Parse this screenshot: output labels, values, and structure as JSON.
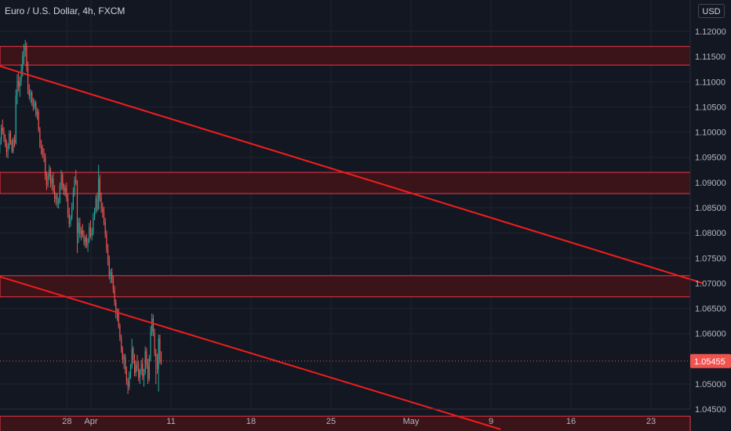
{
  "header": {
    "title": "Euro / U.S. Dollar, 4h, FXCM",
    "currency_button": "USD"
  },
  "colors": {
    "background": "#131722",
    "grid": "#1f2430",
    "up_candle": "#26a69a",
    "down_candle": "#ef5350",
    "trendline": "#f21d1d",
    "zone_fill": "#3a1419",
    "zone_border": "#f23645",
    "price_label_bg": "#ef5350",
    "axis_text": "#b2b5be"
  },
  "chart_data": {
    "type": "candlestick",
    "title": "Euro / U.S. Dollar, 4h, FXCM",
    "ylim": [
      1.0395,
      1.1245
    ],
    "y_ticks": [
      "1.12000",
      "1.11500",
      "1.11000",
      "1.10500",
      "1.10000",
      "1.09500",
      "1.09000",
      "1.08500",
      "1.08000",
      "1.07500",
      "1.07000",
      "1.06500",
      "1.06000",
      "1.05000",
      "1.04500"
    ],
    "x_ticks": [
      "28",
      "Apr",
      "11",
      "18",
      "25",
      "May",
      "9",
      "16",
      "23"
    ],
    "x_tick_positions": [
      -3,
      0,
      10,
      20,
      30,
      40,
      50,
      60,
      70
    ],
    "x_tick_note": "positions in trading-day index relative to Apr 1",
    "last_price_label": "1.05455",
    "last_price": 1.05455,
    "grid": true,
    "zones": [
      {
        "top": 1.117,
        "bottom": 1.1133
      },
      {
        "top": 1.092,
        "bottom": 1.0878
      },
      {
        "top": 1.0715,
        "bottom": 1.0673
      },
      {
        "top": 1.0436,
        "bottom": 1.0395
      }
    ],
    "trendlines": [
      {
        "from": [
          -11.8,
          1.1133
        ],
        "to": [
          76.5,
          1.07
        ]
      },
      {
        "from": [
          -11.8,
          1.0715
        ],
        "to": [
          51.2,
          1.041
        ]
      }
    ],
    "candles_per_day": 6,
    "candles": [
      [
        1.0985,
        1.1002,
        1.0968,
        1.0975
      ],
      [
        1.0975,
        1.099,
        1.0958,
        1.0984
      ],
      [
        1.0984,
        1.1015,
        1.0975,
        1.1008
      ],
      [
        1.1008,
        1.1025,
        1.0995,
        1.1002
      ],
      [
        1.1002,
        1.101,
        1.098,
        1.0988
      ],
      [
        1.0988,
        1.0996,
        1.097,
        1.0975
      ],
      [
        1.0975,
        1.0985,
        1.095,
        1.096
      ],
      [
        1.096,
        1.0978,
        1.0948,
        1.0972
      ],
      [
        1.0972,
        1.1004,
        1.0966,
        1.0998
      ],
      [
        1.0998,
        1.1003,
        1.0975,
        1.0982
      ],
      [
        1.0982,
        1.0986,
        1.0958,
        1.0962
      ],
      [
        1.0962,
        1.099,
        1.0958,
        1.0985
      ],
      [
        1.0985,
        1.0995,
        1.097,
        1.0978
      ],
      [
        1.0978,
        1.1085,
        1.0975,
        1.1072
      ],
      [
        1.1072,
        1.1115,
        1.1055,
        1.1102
      ],
      [
        1.1102,
        1.1118,
        1.108,
        1.109
      ],
      [
        1.109,
        1.111,
        1.107,
        1.11
      ],
      [
        1.11,
        1.1135,
        1.1092,
        1.1125
      ],
      [
        1.1125,
        1.116,
        1.111,
        1.115
      ],
      [
        1.115,
        1.1175,
        1.1135,
        1.1162
      ],
      [
        1.1162,
        1.1183,
        1.115,
        1.117
      ],
      [
        1.117,
        1.1178,
        1.112,
        1.113
      ],
      [
        1.113,
        1.114,
        1.1075,
        1.1085
      ],
      [
        1.1085,
        1.1095,
        1.1065,
        1.1072
      ],
      [
        1.1072,
        1.1085,
        1.1058,
        1.1078
      ],
      [
        1.1078,
        1.1082,
        1.1052,
        1.106
      ],
      [
        1.106,
        1.1068,
        1.1042,
        1.105
      ],
      [
        1.105,
        1.1065,
        1.1045,
        1.1058
      ],
      [
        1.1058,
        1.1062,
        1.103,
        1.1035
      ],
      [
        1.1035,
        1.1048,
        1.1025,
        1.104
      ],
      [
        1.104,
        1.1045,
        1.1,
        1.1005
      ],
      [
        1.1005,
        1.101,
        1.0968,
        1.0972
      ],
      [
        1.0972,
        1.0985,
        1.0955,
        1.0965
      ],
      [
        1.0965,
        1.0975,
        1.0948,
        1.0958
      ],
      [
        1.0958,
        1.0968,
        1.094,
        1.095
      ],
      [
        1.095,
        1.0958,
        1.0905,
        1.0912
      ],
      [
        1.0912,
        1.0922,
        1.0885,
        1.0895
      ],
      [
        1.0895,
        1.0918,
        1.089,
        1.0912
      ],
      [
        1.0912,
        1.0935,
        1.0905,
        1.0925
      ],
      [
        1.0925,
        1.093,
        1.089,
        1.0898
      ],
      [
        1.0898,
        1.0915,
        1.0885,
        1.0908
      ],
      [
        1.0908,
        1.092,
        1.0878,
        1.0882
      ],
      [
        1.0882,
        1.0895,
        1.086,
        1.0868
      ],
      [
        1.0868,
        1.088,
        1.0855,
        1.0872
      ],
      [
        1.0872,
        1.0878,
        1.085,
        1.0858
      ],
      [
        1.0858,
        1.087,
        1.0848,
        1.0862
      ],
      [
        1.0862,
        1.09,
        1.0858,
        1.0895
      ],
      [
        1.0895,
        1.0925,
        1.0885,
        1.0915
      ],
      [
        1.0915,
        1.092,
        1.0885,
        1.089
      ],
      [
        1.089,
        1.0898,
        1.0875,
        1.0882
      ],
      [
        1.0882,
        1.0895,
        1.0872,
        1.089
      ],
      [
        1.089,
        1.09,
        1.0862,
        1.0868
      ],
      [
        1.0868,
        1.0878,
        1.083,
        1.0838
      ],
      [
        1.0838,
        1.085,
        1.081,
        1.0818
      ],
      [
        1.0818,
        1.0835,
        1.0812,
        1.083
      ],
      [
        1.083,
        1.086,
        1.0825,
        1.0852
      ],
      [
        1.0852,
        1.089,
        1.0845,
        1.088
      ],
      [
        1.088,
        1.0912,
        1.0872,
        1.0905
      ],
      [
        1.0905,
        1.0925,
        1.0895,
        1.09
      ],
      [
        1.09,
        1.0905,
        1.076,
        1.08
      ],
      [
        1.08,
        1.083,
        1.078,
        1.082
      ],
      [
        1.082,
        1.083,
        1.079,
        1.0798
      ],
      [
        1.0798,
        1.0812,
        1.0785,
        1.0805
      ],
      [
        1.0805,
        1.0818,
        1.079,
        1.0795
      ],
      [
        1.0795,
        1.0805,
        1.0775,
        1.0782
      ],
      [
        1.0782,
        1.0795,
        1.077,
        1.079
      ],
      [
        1.079,
        1.0798,
        1.077,
        1.0775
      ],
      [
        1.0775,
        1.079,
        1.0762,
        1.0785
      ],
      [
        1.0785,
        1.082,
        1.078,
        1.0812
      ],
      [
        1.0812,
        1.0825,
        1.079,
        1.0795
      ],
      [
        1.0795,
        1.081,
        1.0785,
        1.08
      ],
      [
        1.08,
        1.084,
        1.0795,
        1.0832
      ],
      [
        1.0832,
        1.085,
        1.0825,
        1.0845
      ],
      [
        1.0845,
        1.0875,
        1.0838,
        1.0868
      ],
      [
        1.0868,
        1.088,
        1.0842,
        1.0848
      ],
      [
        1.0848,
        1.0935,
        1.0845,
        1.0908
      ],
      [
        1.0908,
        1.0915,
        1.0862,
        1.087
      ],
      [
        1.087,
        1.088,
        1.084,
        1.0848
      ],
      [
        1.0848,
        1.086,
        1.083,
        1.0842
      ],
      [
        1.0842,
        1.0852,
        1.0815,
        1.0822
      ],
      [
        1.0822,
        1.083,
        1.079,
        1.0798
      ],
      [
        1.0798,
        1.0805,
        1.076,
        1.0768
      ],
      [
        1.0768,
        1.0778,
        1.0735,
        1.0745
      ],
      [
        1.0745,
        1.0755,
        1.0708,
        1.0715
      ],
      [
        1.0715,
        1.0728,
        1.07,
        1.0722
      ],
      [
        1.0722,
        1.073,
        1.07,
        1.0708
      ],
      [
        1.0708,
        1.0715,
        1.068,
        1.0688
      ],
      [
        1.0688,
        1.0695,
        1.0655,
        1.0662
      ],
      [
        1.0662,
        1.0668,
        1.063,
        1.064
      ],
      [
        1.064,
        1.065,
        1.0625,
        1.0645
      ],
      [
        1.0645,
        1.065,
        1.061,
        1.0615
      ],
      [
        1.0615,
        1.062,
        1.0585,
        1.0592
      ],
      [
        1.0592,
        1.0598,
        1.0562,
        1.0568
      ],
      [
        1.0568,
        1.0575,
        1.054,
        1.0548
      ],
      [
        1.0548,
        1.056,
        1.053,
        1.0555
      ],
      [
        1.0555,
        1.056,
        1.052,
        1.0528
      ],
      [
        1.0528,
        1.0535,
        1.0498,
        1.0505
      ],
      [
        1.0505,
        1.0512,
        1.048,
        1.0495
      ],
      [
        1.0495,
        1.0525,
        1.0488,
        1.0518
      ],
      [
        1.0518,
        1.054,
        1.051,
        1.0535
      ],
      [
        1.0535,
        1.059,
        1.053,
        1.057
      ],
      [
        1.057,
        1.0575,
        1.054,
        1.0548
      ],
      [
        1.0548,
        1.056,
        1.0515,
        1.0522
      ],
      [
        1.0522,
        1.0545,
        1.0515,
        1.0538
      ],
      [
        1.0538,
        1.0558,
        1.0525,
        1.053
      ],
      [
        1.053,
        1.0545,
        1.0505,
        1.0512
      ],
      [
        1.0512,
        1.053,
        1.05,
        1.0525
      ],
      [
        1.0525,
        1.0548,
        1.0518,
        1.054
      ],
      [
        1.054,
        1.0552,
        1.0508,
        1.0515
      ],
      [
        1.0515,
        1.053,
        1.0495,
        1.0522
      ],
      [
        1.0522,
        1.0575,
        1.0518,
        1.0565
      ],
      [
        1.0565,
        1.0572,
        1.053,
        1.0538
      ],
      [
        1.0538,
        1.055,
        1.05,
        1.051
      ],
      [
        1.051,
        1.0558,
        1.0505,
        1.055
      ],
      [
        1.055,
        1.0615,
        1.0545,
        1.0605
      ],
      [
        1.0605,
        1.064,
        1.0595,
        1.063
      ],
      [
        1.063,
        1.0638,
        1.0595,
        1.0602
      ],
      [
        1.0602,
        1.061,
        1.0555,
        1.0562
      ],
      [
        1.0562,
        1.057,
        1.05,
        1.0548
      ],
      [
        1.0548,
        1.056,
        1.052,
        1.053
      ],
      [
        1.053,
        1.0598,
        1.0485,
        1.059
      ],
      [
        1.059,
        1.0598,
        1.054,
        1.0548
      ],
      [
        1.0548,
        1.0565,
        1.0538,
        1.0545
      ]
    ]
  }
}
